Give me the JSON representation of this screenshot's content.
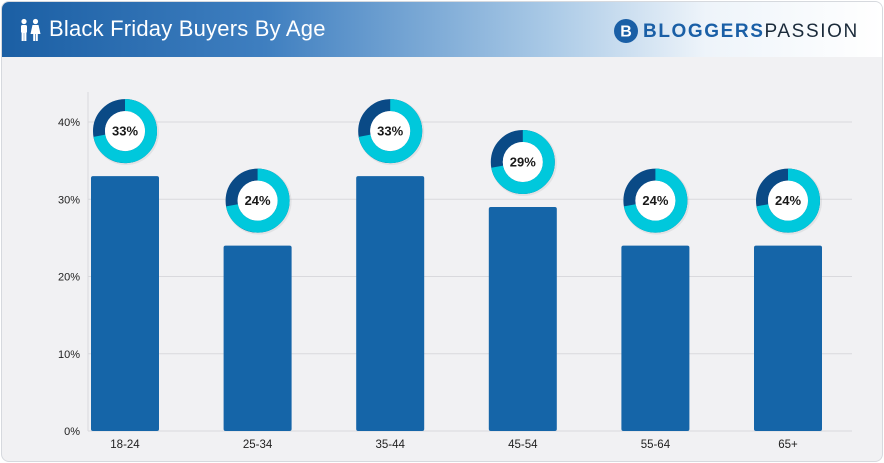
{
  "header": {
    "title": "Black Friday Buyers By Age",
    "icon": "people-icon",
    "logo_part1": "BLOGGERS",
    "logo_part2": "PASSION",
    "logo_icon": "bloggerspassion-logo-icon"
  },
  "colors": {
    "bar": "#1565a8",
    "donut_fill": "#00c8dc",
    "donut_rest": "#0a4a86",
    "grid": "#d9d9dd",
    "text": "#222222"
  },
  "chart_data": {
    "type": "bar",
    "categories": [
      "18-24",
      "25-34",
      "35-44",
      "45-54",
      "55-64",
      "65+"
    ],
    "values": [
      33,
      24,
      33,
      29,
      24,
      24
    ],
    "data_labels": [
      "33%",
      "24%",
      "33%",
      "29%",
      "24%",
      "24%"
    ],
    "ylim": [
      0,
      40
    ],
    "yticks": [
      0,
      10,
      20,
      30,
      40
    ],
    "ytick_labels": [
      "0%",
      "10%",
      "20%",
      "30%",
      "40%"
    ],
    "grid": true
  }
}
